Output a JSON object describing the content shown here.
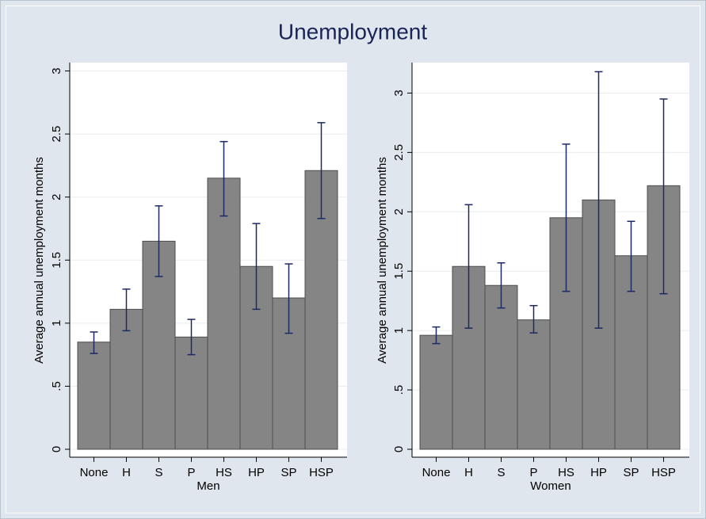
{
  "title": "Unemployment",
  "chart_data": [
    {
      "type": "bar",
      "x_label": "Men",
      "y_label": "Average annual unemployment months",
      "categories": [
        "None",
        "H",
        "S",
        "P",
        "HS",
        "HP",
        "SP",
        "HSP"
      ],
      "values": [
        0.85,
        1.11,
        1.65,
        0.89,
        2.15,
        1.45,
        1.2,
        2.21
      ],
      "ci_low": [
        0.76,
        0.94,
        1.37,
        0.75,
        1.85,
        1.11,
        0.92,
        1.83
      ],
      "ci_high": [
        0.93,
        1.27,
        1.93,
        1.03,
        2.44,
        1.79,
        1.47,
        2.59
      ],
      "color": "#858585",
      "error_color": "#1c2a64",
      "ylim": [
        0,
        3.06
      ],
      "yticks": [
        0,
        {
          "value": 0.5,
          "label": ".5"
        },
        1,
        1.5,
        2,
        2.5,
        3
      ],
      "grid": true
    },
    {
      "type": "bar",
      "x_label": "Women",
      "y_label": "Average annual unemployment months",
      "categories": [
        "None",
        "H",
        "S",
        "P",
        "HS",
        "HP",
        "SP",
        "HSP"
      ],
      "values": [
        0.96,
        1.54,
        1.38,
        1.09,
        1.95,
        2.1,
        1.63,
        2.22
      ],
      "ci_low": [
        0.89,
        1.02,
        1.19,
        0.98,
        1.33,
        1.02,
        1.33,
        1.31
      ],
      "ci_high": [
        1.03,
        2.06,
        1.57,
        1.21,
        2.57,
        3.18,
        1.92,
        2.95
      ],
      "color": "#858585",
      "error_color": "#1c2a64",
      "ylim": [
        0,
        3.25
      ],
      "yticks": [
        0,
        {
          "value": 0.5,
          "label": ".5"
        },
        1,
        1.5,
        2,
        2.5,
        3
      ],
      "grid": true
    }
  ]
}
